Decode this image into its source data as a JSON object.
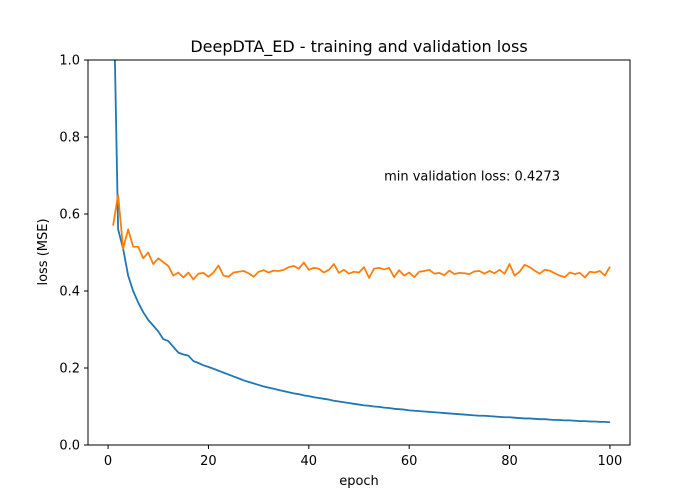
{
  "chart_data": {
    "type": "line",
    "title": "DeepDTA_ED - training and validation loss",
    "xlabel": "epoch",
    "ylabel": "loss (MSE)",
    "xlim": [
      -4,
      104
    ],
    "ylim": [
      0,
      1
    ],
    "xticks": [
      0,
      20,
      40,
      60,
      80,
      100
    ],
    "yticks": [
      0.0,
      0.2,
      0.4,
      0.6,
      0.8,
      1.0
    ],
    "xtick_labels": [
      "0",
      "20",
      "40",
      "60",
      "80",
      "100"
    ],
    "ytick_labels": [
      "0.0",
      "0.2",
      "0.4",
      "0.6",
      "0.8",
      "1.0"
    ],
    "grid": false,
    "annotation": "min validation loss: 0.4273",
    "annotation_x": 55,
    "annotation_y": 0.7,
    "series": [
      {
        "color": "#1f77b4",
        "values": [
          1.25,
          0.56,
          0.51,
          0.44,
          0.4,
          0.37,
          0.345,
          0.325,
          0.31,
          0.295,
          0.275,
          0.27,
          0.255,
          0.24,
          0.235,
          0.232,
          0.218,
          0.213,
          0.207,
          0.203,
          0.198,
          0.193,
          0.188,
          0.183,
          0.178,
          0.173,
          0.168,
          0.164,
          0.16,
          0.156,
          0.152,
          0.149,
          0.146,
          0.143,
          0.14,
          0.137,
          0.134,
          0.132,
          0.129,
          0.127,
          0.124,
          0.122,
          0.12,
          0.118,
          0.115,
          0.113,
          0.111,
          0.109,
          0.107,
          0.105,
          0.103,
          0.102,
          0.1,
          0.099,
          0.097,
          0.096,
          0.094,
          0.093,
          0.092,
          0.09,
          0.089,
          0.088,
          0.087,
          0.086,
          0.085,
          0.084,
          0.083,
          0.082,
          0.081,
          0.08,
          0.079,
          0.078,
          0.077,
          0.076,
          0.076,
          0.075,
          0.074,
          0.073,
          0.072,
          0.072,
          0.071,
          0.07,
          0.069,
          0.069,
          0.068,
          0.067,
          0.067,
          0.066,
          0.065,
          0.065,
          0.064,
          0.064,
          0.063,
          0.062,
          0.062,
          0.061,
          0.061,
          0.06,
          0.06,
          0.059
        ]
      },
      {
        "color": "#ff7f0e",
        "values": [
          0.57,
          0.65,
          0.51,
          0.56,
          0.515,
          0.515,
          0.485,
          0.5,
          0.47,
          0.485,
          0.475,
          0.465,
          0.44,
          0.448,
          0.435,
          0.448,
          0.43,
          0.445,
          0.447,
          0.437,
          0.448,
          0.466,
          0.44,
          0.437,
          0.448,
          0.45,
          0.452,
          0.446,
          0.437,
          0.45,
          0.454,
          0.448,
          0.453,
          0.452,
          0.455,
          0.462,
          0.465,
          0.458,
          0.474,
          0.455,
          0.46,
          0.458,
          0.448,
          0.455,
          0.47,
          0.447,
          0.455,
          0.445,
          0.45,
          0.448,
          0.462,
          0.434,
          0.458,
          0.46,
          0.456,
          0.46,
          0.436,
          0.454,
          0.44,
          0.448,
          0.436,
          0.45,
          0.452,
          0.455,
          0.445,
          0.447,
          0.441,
          0.453,
          0.444,
          0.447,
          0.446,
          0.444,
          0.451,
          0.452,
          0.445,
          0.452,
          0.446,
          0.455,
          0.445,
          0.47,
          0.44,
          0.45,
          0.468,
          0.462,
          0.453,
          0.445,
          0.455,
          0.453,
          0.446,
          0.44,
          0.436,
          0.448,
          0.444,
          0.447,
          0.435,
          0.45,
          0.448,
          0.452,
          0.44,
          0.463
        ]
      }
    ]
  }
}
